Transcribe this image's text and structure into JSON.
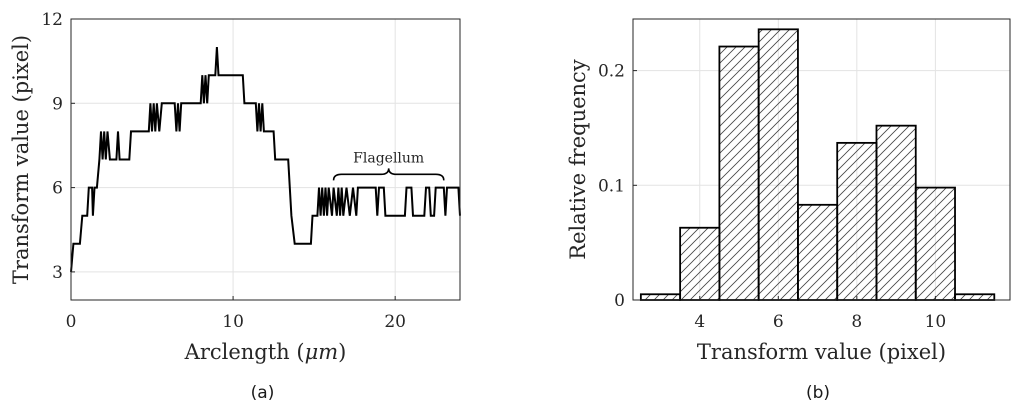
{
  "chart_data": [
    {
      "panel_label": "(a)",
      "type": "line",
      "xlabel": "Arclength",
      "xlabel_unit": "μm",
      "ylabel": "Transform value (pixel)",
      "xlim": [
        0,
        24
      ],
      "ylim": [
        2,
        12
      ],
      "xticks": [
        0,
        10,
        20
      ],
      "yticks": [
        3,
        6,
        9,
        12
      ],
      "grid": true,
      "annotation": {
        "text": "Flagellum",
        "x_start": 16.2,
        "x_end": 23.0,
        "y": 6.4
      },
      "series": [
        {
          "points": [
            [
              0,
              3
            ],
            [
              0.15,
              4
            ],
            [
              0.55,
              4
            ],
            [
              0.7,
              5
            ],
            [
              1.0,
              5
            ],
            [
              1.1,
              6
            ],
            [
              1.3,
              6
            ],
            [
              1.35,
              5
            ],
            [
              1.45,
              6
            ],
            [
              1.6,
              6
            ],
            [
              1.75,
              7
            ],
            [
              1.85,
              8
            ],
            [
              1.95,
              7
            ],
            [
              2.05,
              8
            ],
            [
              2.15,
              7
            ],
            [
              2.25,
              8
            ],
            [
              2.4,
              7
            ],
            [
              2.8,
              7
            ],
            [
              2.9,
              8
            ],
            [
              3.0,
              7
            ],
            [
              3.6,
              7
            ],
            [
              3.7,
              8
            ],
            [
              4.8,
              8
            ],
            [
              4.9,
              9
            ],
            [
              5.0,
              8
            ],
            [
              5.1,
              9
            ],
            [
              5.2,
              8
            ],
            [
              5.3,
              9
            ],
            [
              5.45,
              8
            ],
            [
              5.6,
              9
            ],
            [
              6.4,
              9
            ],
            [
              6.5,
              8
            ],
            [
              6.6,
              9
            ],
            [
              6.7,
              8
            ],
            [
              6.8,
              9
            ],
            [
              8.0,
              9
            ],
            [
              8.1,
              10
            ],
            [
              8.2,
              9
            ],
            [
              8.3,
              10
            ],
            [
              8.4,
              9
            ],
            [
              8.5,
              10
            ],
            [
              8.9,
              10
            ],
            [
              9.0,
              11
            ],
            [
              9.1,
              10
            ],
            [
              10.6,
              10
            ],
            [
              10.7,
              9
            ],
            [
              11.4,
              9
            ],
            [
              11.5,
              8
            ],
            [
              11.6,
              9
            ],
            [
              11.7,
              8
            ],
            [
              11.8,
              9
            ],
            [
              11.9,
              8
            ],
            [
              12.5,
              8
            ],
            [
              12.6,
              7
            ],
            [
              13.4,
              7
            ],
            [
              13.5,
              6
            ],
            [
              13.6,
              5
            ],
            [
              13.8,
              4
            ],
            [
              14.8,
              4
            ],
            [
              14.9,
              5
            ],
            [
              15.2,
              5
            ],
            [
              15.3,
              6
            ],
            [
              15.4,
              5
            ],
            [
              15.5,
              6
            ],
            [
              15.6,
              5
            ],
            [
              15.7,
              6
            ],
            [
              15.8,
              5
            ],
            [
              15.9,
              6
            ],
            [
              16.1,
              5
            ],
            [
              16.2,
              6
            ],
            [
              16.4,
              5
            ],
            [
              16.5,
              6
            ],
            [
              16.6,
              5
            ],
            [
              16.7,
              6
            ],
            [
              16.8,
              5
            ],
            [
              17.0,
              6
            ],
            [
              17.2,
              5
            ],
            [
              17.4,
              6
            ],
            [
              17.6,
              5
            ],
            [
              17.7,
              6
            ],
            [
              18.8,
              6
            ],
            [
              18.9,
              5
            ],
            [
              19.0,
              6
            ],
            [
              19.3,
              6
            ],
            [
              19.4,
              5
            ],
            [
              20.6,
              5
            ],
            [
              20.7,
              6
            ],
            [
              21.0,
              6
            ],
            [
              21.1,
              5
            ],
            [
              21.8,
              5
            ],
            [
              21.9,
              6
            ],
            [
              22.1,
              6
            ],
            [
              22.2,
              5
            ],
            [
              22.4,
              5
            ],
            [
              22.5,
              6
            ],
            [
              23.0,
              6
            ],
            [
              23.1,
              5
            ],
            [
              23.2,
              6
            ],
            [
              23.9,
              6
            ],
            [
              24,
              5
            ]
          ]
        }
      ]
    },
    {
      "panel_label": "(b)",
      "type": "bar",
      "hatch": "diagonal",
      "xlabel": "Transform value (pixel)",
      "ylabel": "Relative frequency",
      "xlim": [
        2.3,
        11.9
      ],
      "ylim": [
        0,
        0.245
      ],
      "xticks": [
        4,
        6,
        8,
        10
      ],
      "yticks": [
        0,
        0.1,
        0.2
      ],
      "grid": true,
      "categories": [
        3,
        4,
        5,
        6,
        7,
        8,
        9,
        10,
        11
      ],
      "values": [
        0.005,
        0.063,
        0.221,
        0.236,
        0.083,
        0.137,
        0.152,
        0.098,
        0.005
      ]
    }
  ]
}
